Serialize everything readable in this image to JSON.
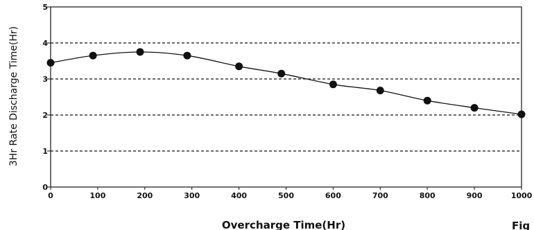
{
  "chart_data": {
    "type": "line",
    "xlabel": "Overcharge Time(Hr)",
    "ylabel": "3Hr Rate Discharge Time(Hr)",
    "xlim": [
      0,
      1000
    ],
    "ylim": [
      0,
      5
    ],
    "xticks": [
      0,
      100,
      200,
      300,
      400,
      500,
      600,
      700,
      800,
      900,
      1000
    ],
    "xtick_labels": [
      "0",
      "100",
      "200",
      "300",
      "400",
      "500",
      "600",
      "700",
      "800",
      "900",
      "1000"
    ],
    "yticks": [
      0,
      1,
      2,
      3,
      4,
      5
    ],
    "ytick_labels": [
      "0",
      "1",
      "2",
      "3",
      "4",
      "5"
    ],
    "grid": "horizontal dashed at 1, 2, 3, 4",
    "series": [
      {
        "x": [
          0,
          90,
          190,
          290,
          400,
          490,
          600,
          700,
          800,
          900,
          1000
        ],
        "values": [
          3.45,
          3.65,
          3.75,
          3.65,
          3.35,
          3.15,
          2.85,
          2.68,
          2.4,
          2.2,
          2.02
        ],
        "color": "#111111",
        "marker": "filled circle"
      }
    ]
  },
  "caption": {
    "text": "Fig"
  }
}
